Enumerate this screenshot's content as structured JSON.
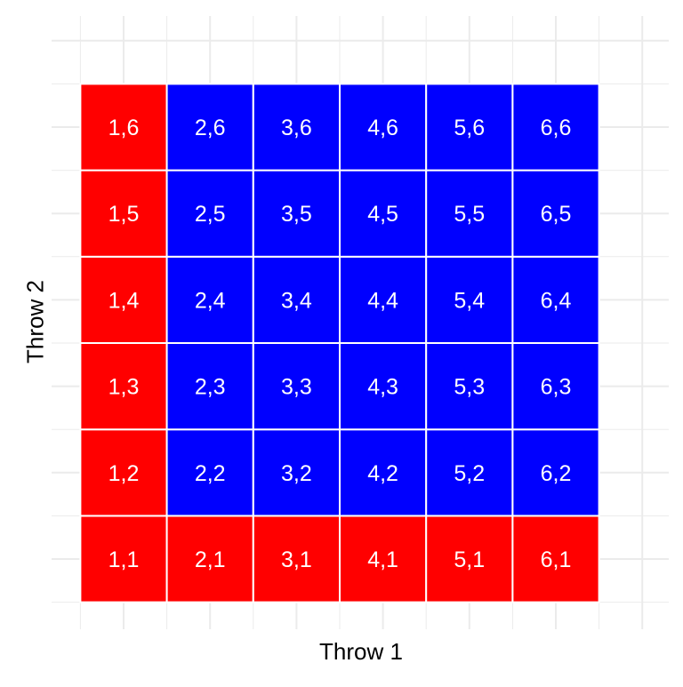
{
  "chart_data": {
    "type": "heatmap",
    "xlabel": "Throw 1",
    "ylabel": "Throw 2",
    "x": [
      1,
      2,
      3,
      4,
      5,
      6
    ],
    "y": [
      1,
      2,
      3,
      4,
      5,
      6
    ],
    "grid": true,
    "legend": "none",
    "colors": {
      "red": "#ff0000",
      "blue": "#0000ff",
      "label": "#ffffff",
      "grid": "#ebebeb",
      "border": "#ffffff"
    },
    "cells": [
      {
        "x": 1,
        "y": 1,
        "label": "1,1",
        "color": "red"
      },
      {
        "x": 2,
        "y": 1,
        "label": "2,1",
        "color": "red"
      },
      {
        "x": 3,
        "y": 1,
        "label": "3,1",
        "color": "red"
      },
      {
        "x": 4,
        "y": 1,
        "label": "4,1",
        "color": "red"
      },
      {
        "x": 5,
        "y": 1,
        "label": "5,1",
        "color": "red"
      },
      {
        "x": 6,
        "y": 1,
        "label": "6,1",
        "color": "red"
      },
      {
        "x": 1,
        "y": 2,
        "label": "1,2",
        "color": "red"
      },
      {
        "x": 2,
        "y": 2,
        "label": "2,2",
        "color": "blue"
      },
      {
        "x": 3,
        "y": 2,
        "label": "3,2",
        "color": "blue"
      },
      {
        "x": 4,
        "y": 2,
        "label": "4,2",
        "color": "blue"
      },
      {
        "x": 5,
        "y": 2,
        "label": "5,2",
        "color": "blue"
      },
      {
        "x": 6,
        "y": 2,
        "label": "6,2",
        "color": "blue"
      },
      {
        "x": 1,
        "y": 3,
        "label": "1,3",
        "color": "red"
      },
      {
        "x": 2,
        "y": 3,
        "label": "2,3",
        "color": "blue"
      },
      {
        "x": 3,
        "y": 3,
        "label": "3,3",
        "color": "blue"
      },
      {
        "x": 4,
        "y": 3,
        "label": "4,3",
        "color": "blue"
      },
      {
        "x": 5,
        "y": 3,
        "label": "5,3",
        "color": "blue"
      },
      {
        "x": 6,
        "y": 3,
        "label": "6,3",
        "color": "blue"
      },
      {
        "x": 1,
        "y": 4,
        "label": "1,4",
        "color": "red"
      },
      {
        "x": 2,
        "y": 4,
        "label": "2,4",
        "color": "blue"
      },
      {
        "x": 3,
        "y": 4,
        "label": "3,4",
        "color": "blue"
      },
      {
        "x": 4,
        "y": 4,
        "label": "4,4",
        "color": "blue"
      },
      {
        "x": 5,
        "y": 4,
        "label": "5,4",
        "color": "blue"
      },
      {
        "x": 6,
        "y": 4,
        "label": "6,4",
        "color": "blue"
      },
      {
        "x": 1,
        "y": 5,
        "label": "1,5",
        "color": "red"
      },
      {
        "x": 2,
        "y": 5,
        "label": "2,5",
        "color": "blue"
      },
      {
        "x": 3,
        "y": 5,
        "label": "3,5",
        "color": "blue"
      },
      {
        "x": 4,
        "y": 5,
        "label": "4,5",
        "color": "blue"
      },
      {
        "x": 5,
        "y": 5,
        "label": "5,5",
        "color": "blue"
      },
      {
        "x": 6,
        "y": 5,
        "label": "6,5",
        "color": "blue"
      },
      {
        "x": 1,
        "y": 6,
        "label": "1,6",
        "color": "red"
      },
      {
        "x": 2,
        "y": 6,
        "label": "2,6",
        "color": "blue"
      },
      {
        "x": 3,
        "y": 6,
        "label": "3,6",
        "color": "blue"
      },
      {
        "x": 4,
        "y": 6,
        "label": "4,6",
        "color": "blue"
      },
      {
        "x": 5,
        "y": 6,
        "label": "5,6",
        "color": "blue"
      },
      {
        "x": 6,
        "y": 6,
        "label": "6,6",
        "color": "blue"
      }
    ]
  }
}
